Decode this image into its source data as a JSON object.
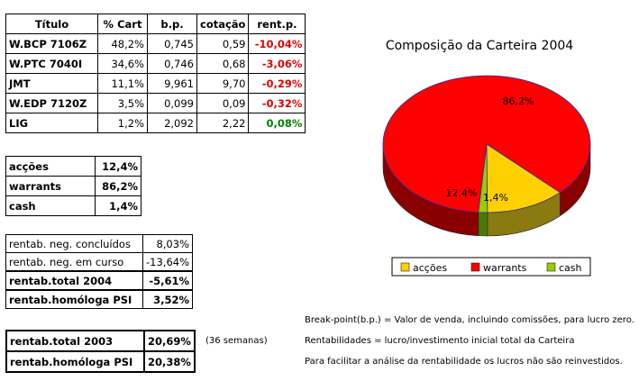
{
  "holdings": {
    "headers": [
      "Título",
      "% Cart",
      "b.p.",
      "cotação",
      "rent.p."
    ],
    "rows": [
      {
        "titulo": "W.BCP 7106Z",
        "cart": "48,2%",
        "bp": "0,745",
        "cotacao": "0,59",
        "rent": "-10,04%"
      },
      {
        "titulo": "W.PTC 7040I",
        "cart": "34,6%",
        "bp": "0,746",
        "cotacao": "0,68",
        "rent": "-3,06%"
      },
      {
        "titulo": "JMT",
        "cart": "11,1%",
        "bp": "9,961",
        "cotacao": "9,70",
        "rent": "-0,29%"
      },
      {
        "titulo": "W.EDP 7120Z",
        "cart": "3,5%",
        "bp": "0,099",
        "cotacao": "0,09",
        "rent": "-0,32%"
      },
      {
        "titulo": "LIG",
        "cart": "1,2%",
        "bp": "2,092",
        "cotacao": "2,22",
        "rent": "0,08%"
      }
    ]
  },
  "allocation": [
    {
      "label": "acções",
      "value": "12,4%"
    },
    {
      "label": "warrants",
      "value": "86,2%"
    },
    {
      "label": "cash",
      "value": "1,4%"
    }
  ],
  "returns": [
    {
      "label": "rentab. neg. concluídos",
      "value": "8,03%"
    },
    {
      "label": "rentab. neg. em curso",
      "value": "-13,64%"
    },
    {
      "label": "rentab.total 2004",
      "value": "-5,61%"
    },
    {
      "label": "rentab.homóloga PSI",
      "value": "3,52%"
    }
  ],
  "totals": [
    {
      "label": "rentab.total 2003",
      "value": "20,69%"
    },
    {
      "label": "rentab.homóloga PSI",
      "value": "20,38%"
    }
  ],
  "weeks_note": "(36 semanas)",
  "notes": [
    "Break-point(b.p.) = Valor de venda, incluindo comissões, para lucro zero.",
    "Rentabilidades = lucro/investimento inicial total da Carteira",
    "Para facilitar a análise da rentabilidade os lucros não são reinvestidos."
  ],
  "chart_data": {
    "type": "pie",
    "title": "Composição da Carteira 2004",
    "categories": [
      "acções",
      "warrants",
      "cash"
    ],
    "values": [
      12.4,
      86.2,
      1.4
    ],
    "labels": [
      "12,4%",
      "86,2%",
      "1,4%"
    ],
    "colors": [
      "#ffd000",
      "#ff0000",
      "#99cc00"
    ],
    "side_colors": [
      "#8a7a10",
      "#8a0000",
      "#4a7a00"
    ],
    "legend": "bottom",
    "three_d": true
  }
}
